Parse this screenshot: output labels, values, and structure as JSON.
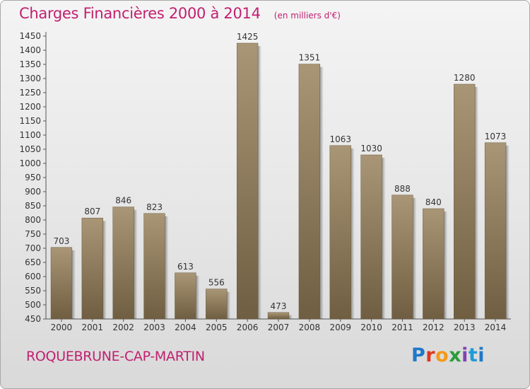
{
  "chart_data": {
    "type": "bar",
    "title": "Charges Financières 2000 à 2014",
    "subtitle": "(en milliers d'€)",
    "categories": [
      "2000",
      "2001",
      "2002",
      "2003",
      "2004",
      "2005",
      "2006",
      "2007",
      "2008",
      "2009",
      "2010",
      "2011",
      "2012",
      "2013",
      "2014"
    ],
    "values": [
      703,
      807,
      846,
      823,
      613,
      556,
      1425,
      473,
      1351,
      1063,
      1030,
      888,
      840,
      1280,
      1073
    ],
    "ylim": [
      450,
      1450
    ],
    "ytick_step": 50,
    "grid": false,
    "bar_color": "#8a7658"
  },
  "footer": {
    "city": "ROQUEBRUNE-CAP-MARTIN",
    "logo": "Proxiti"
  },
  "colors": {
    "accent": "#c12070"
  }
}
